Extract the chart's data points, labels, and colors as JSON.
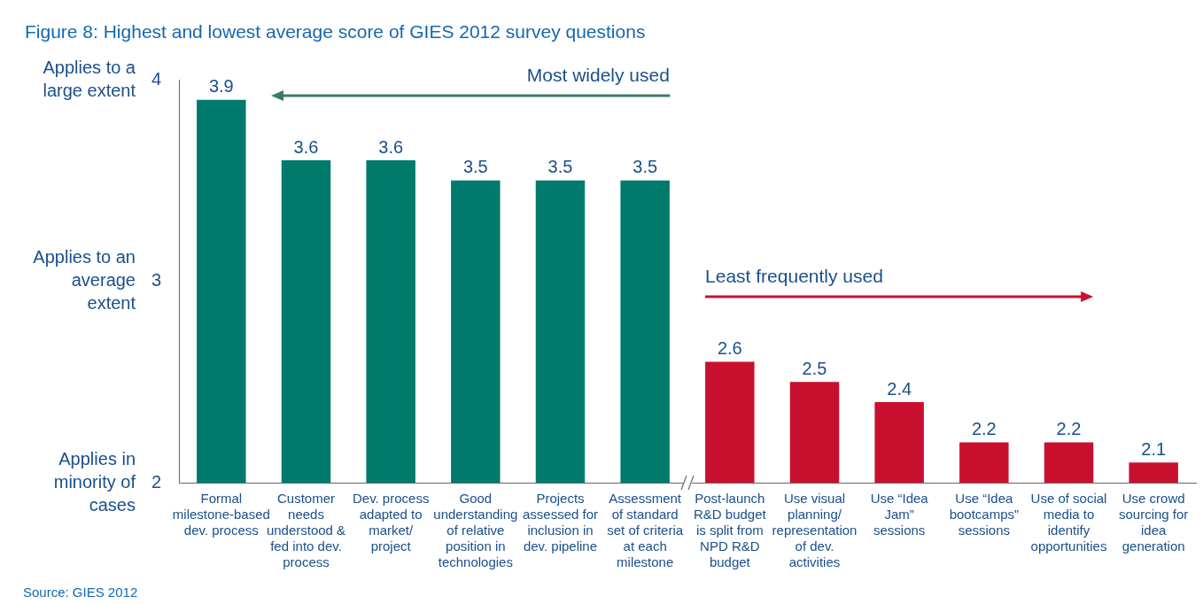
{
  "chart_data": {
    "type": "bar",
    "title": "Figure 8: Highest and lowest average score of GIES 2012 survey questions",
    "categories": [
      "Formal milestone-based dev. process",
      "Customer needs understood & fed into dev. process",
      "Dev. process adapted to market/ project",
      "Good understanding of relative position in technologies",
      "Projects assessed for inclusion in dev. pipeline",
      "Assessment of standard set of criteria at each milestone",
      "Post-launch R&D budget is split from NPD R&D budget",
      "Use visual planning/ representation of dev. activities",
      "Use “Idea Jam” sessions",
      "Use “Idea bootcamps” sessions",
      "Use of social media to identify opportunities",
      "Use crowd sourcing for idea generation"
    ],
    "values": [
      3.9,
      3.6,
      3.6,
      3.5,
      3.5,
      3.5,
      2.6,
      2.5,
      2.4,
      2.2,
      2.2,
      2.1
    ],
    "colors": [
      "#007a6c",
      "#007a6c",
      "#007a6c",
      "#007a6c",
      "#007a6c",
      "#007a6c",
      "#c8102e",
      "#c8102e",
      "#c8102e",
      "#c8102e",
      "#c8102e",
      "#c8102e"
    ],
    "ylim": [
      2,
      4
    ],
    "yticks": [
      2,
      3,
      4
    ],
    "grid": false,
    "legend": false,
    "data_labels": true,
    "annotations": [
      "Applies to a large extent",
      "Applies to an average extent",
      "Applies in minority of cases",
      "Most widely used",
      "Least frequently used",
      "Source: GIES 2012"
    ]
  }
}
